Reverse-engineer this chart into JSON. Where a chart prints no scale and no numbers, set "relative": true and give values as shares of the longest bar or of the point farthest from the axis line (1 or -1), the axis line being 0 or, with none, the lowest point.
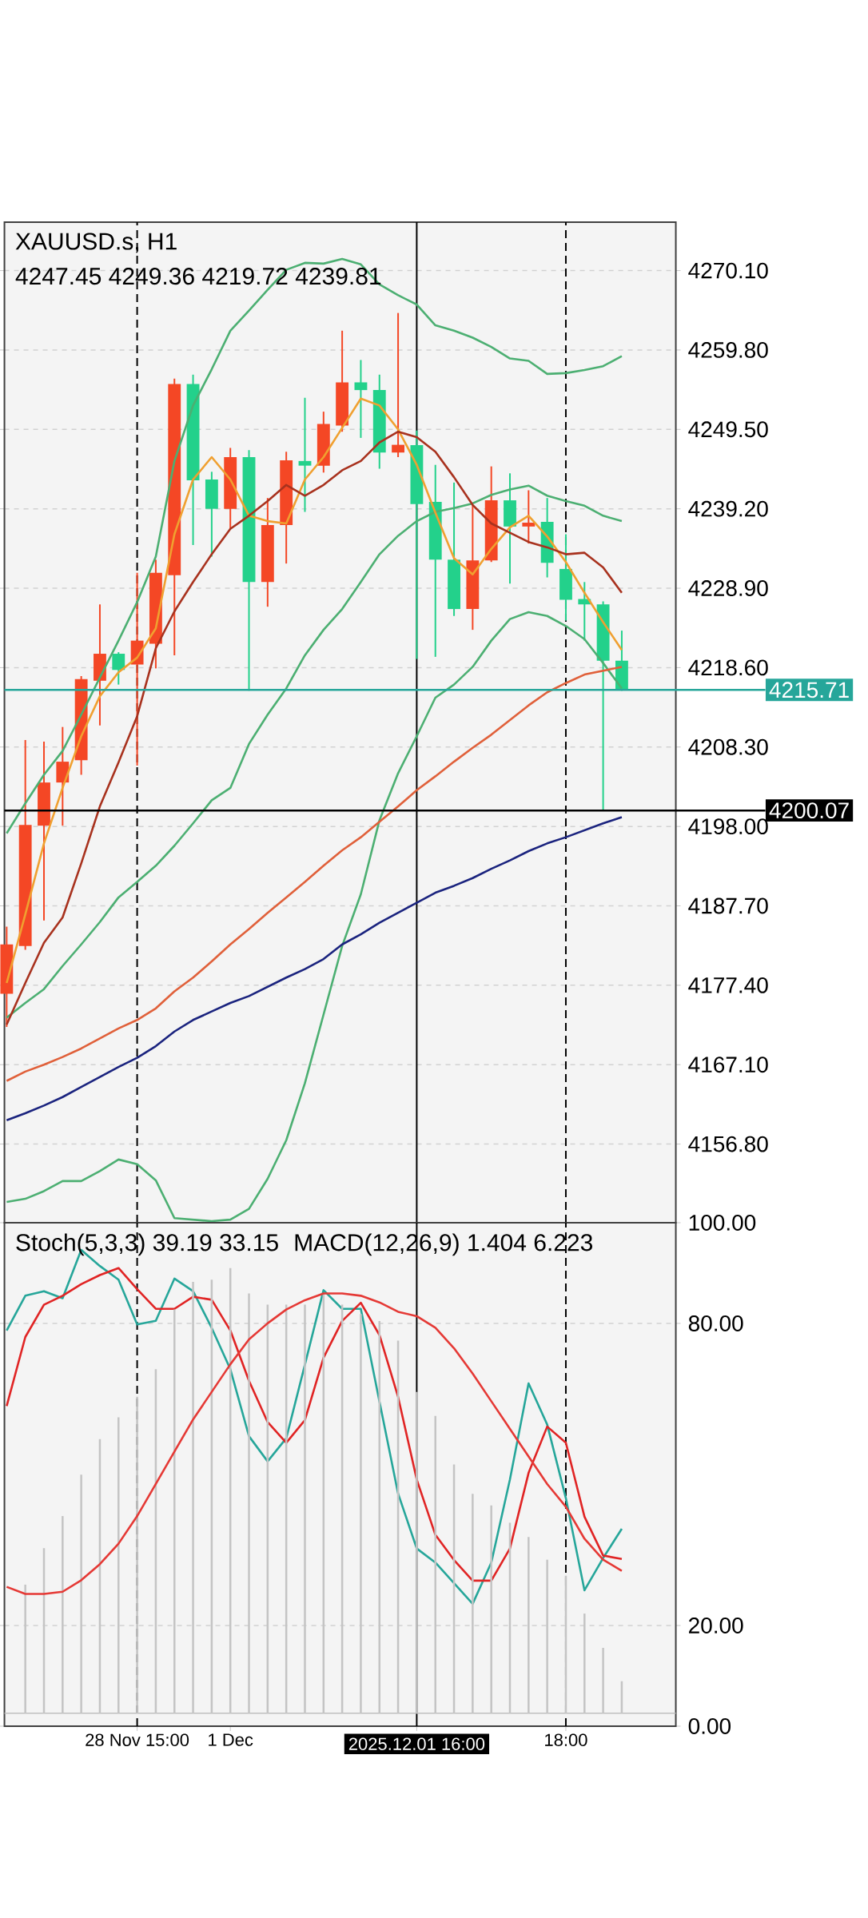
{
  "chart_data": [
    {
      "type": "candlestick",
      "title": "XAUUSD.s, H1",
      "subtitle": "4247.45 4249.36 4219.72 4239.81",
      "categories": [
        null,
        null,
        null,
        null,
        null,
        null,
        null,
        "28 Nov 15:00",
        null,
        null,
        null,
        null,
        "1 Dec",
        null,
        null,
        null,
        null,
        null,
        null,
        null,
        null,
        null,
        "2025.12.01 16:00",
        null,
        null,
        null,
        null,
        null,
        null,
        null,
        "18:00",
        null,
        null,
        null
      ],
      "ohlc": [
        [
          4176.3,
          4185.0,
          4172.0,
          4182.7
        ],
        [
          4182.5,
          4209.2,
          4182.0,
          4198.2
        ],
        [
          4198.1,
          4209.0,
          4185.8,
          4203.7
        ],
        [
          4203.7,
          4210.9,
          4198.1,
          4206.4
        ],
        [
          4206.6,
          4217.5,
          4204.7,
          4217.1
        ],
        [
          4216.9,
          4226.8,
          4211.1,
          4220.4
        ],
        [
          4220.4,
          4220.6,
          4216.4,
          4218.3
        ],
        [
          4219.0,
          4230.9,
          4205.9,
          4222.1
        ],
        [
          4221.7,
          4232.6,
          4218.5,
          4230.9
        ],
        [
          4230.6,
          4256.1,
          4220.2,
          4255.4
        ],
        [
          4255.4,
          4256.6,
          4234.5,
          4242.9
        ],
        [
          4243.0,
          4244.0,
          4233.0,
          4239.2
        ],
        [
          4239.2,
          4247.1,
          4236.6,
          4245.9
        ],
        [
          4245.9,
          4246.8,
          4215.6,
          4229.7
        ],
        [
          4229.7,
          4240.6,
          4226.5,
          4237.1
        ],
        [
          4237.1,
          4246.6,
          4232.1,
          4245.5
        ],
        [
          4245.4,
          4253.6,
          4238.8,
          4244.8
        ],
        [
          4244.8,
          4251.8,
          4243.9,
          4250.2
        ],
        [
          4250.0,
          4262.3,
          4249.2,
          4255.6
        ],
        [
          4255.6,
          4258.5,
          4248.4,
          4254.6
        ],
        [
          4254.6,
          4256.6,
          4244.4,
          4246.5
        ],
        [
          4246.5,
          4264.6,
          4245.9,
          4247.5
        ],
        [
          4247.45,
          4249.36,
          4219.72,
          4239.81
        ],
        [
          4240.1,
          4244.9,
          4220.0,
          4232.6
        ],
        [
          4232.6,
          4242.6,
          4225.3,
          4226.2
        ],
        [
          4226.2,
          4239.7,
          4223.5,
          4232.5
        ],
        [
          4232.5,
          4244.7,
          4232.3,
          4240.3
        ],
        [
          4240.3,
          4243.8,
          4229.5,
          4236.9
        ],
        [
          4236.9,
          4241.6,
          4234.7,
          4237.4
        ],
        [
          4237.5,
          4240.6,
          4230.3,
          4232.2
        ],
        [
          4231.4,
          4235.9,
          4224.7,
          4227.4
        ],
        [
          4227.5,
          4229.7,
          4222.1,
          4226.8
        ],
        [
          4226.8,
          4227.2,
          4200.1,
          4219.5
        ],
        [
          4219.5,
          4223.4,
          4215.6,
          4215.71
        ]
      ],
      "colors": [
        "#f44725",
        "#f44725",
        "#f44725",
        "#f44725",
        "#f44725",
        "#f44725",
        "#23d18b",
        "#f44725",
        "#f44725",
        "#f44725",
        "#23d18b",
        "#23d18b",
        "#f44725",
        "#23d18b",
        "#f44725",
        "#f44725",
        "#23d18b",
        "#f44725",
        "#f44725",
        "#23d18b",
        "#23d18b",
        "#f44725",
        "#23d18b",
        "#23d18b",
        "#23d18b",
        "#f44725",
        "#f44725",
        "#23d18b",
        "#f44725",
        "#23d18b",
        "#23d18b",
        "#23d18b",
        "#23d18b",
        "#23d18b"
      ],
      "series": [
        {
          "type": "line",
          "color": "#4caf72",
          "values": [
            4197.1,
            4201.0,
            4204.7,
            4207.8,
            4212.5,
            4217.3,
            4222.1,
            4227.1,
            4233.0,
            4245.4,
            4252.6,
            4257.3,
            4262.3,
            4264.9,
            4267.6,
            4270.2,
            4271.1,
            4271.0,
            4271.6,
            4270.9,
            4268.3,
            4266.9,
            4265.7,
            4263.0,
            4262.3,
            4261.4,
            4260.2,
            4258.7,
            4258.4,
            4256.7,
            4256.8,
            4257.2,
            4257.7,
            4259.0
          ]
        },
        {
          "type": "line",
          "color": "#4caf72",
          "values": [
            4173.2,
            4175.1,
            4176.9,
            4179.9,
            4182.7,
            4185.6,
            4188.8,
            4190.8,
            4192.9,
            4195.5,
            4198.4,
            4201.4,
            4203.0,
            4208.7,
            4212.5,
            4215.9,
            4220.2,
            4223.5,
            4226.2,
            4229.7,
            4233.3,
            4235.7,
            4237.6,
            4238.8,
            4239.3,
            4239.9,
            4241.0,
            4241.7,
            4242.2,
            4240.9,
            4240.2,
            4239.6,
            4238.3,
            4237.6
          ]
        },
        {
          "type": "line",
          "color": "#4caf72",
          "values": [
            4149.3,
            4149.7,
            4150.7,
            4152.0,
            4152.0,
            4153.3,
            4154.8,
            4154.2,
            4152.1,
            4147.2,
            4147.0,
            4146.8,
            4147.0,
            4148.4,
            4152.3,
            4157.3,
            4164.7,
            4173.6,
            4182.5,
            4189.2,
            4198.8,
            4204.9,
            4209.7,
            4214.7,
            4216.4,
            4218.7,
            4222.1,
            4224.9,
            4225.8,
            4225.3,
            4224.0,
            4222.3,
            4219.2,
            4215.9
          ]
        },
        {
          "type": "line",
          "color": "#f0a030",
          "values": [
            4177.7,
            4186.6,
            4195.8,
            4203.0,
            4209.7,
            4214.9,
            4218.0,
            4219.9,
            4223.7,
            4235.9,
            4243.0,
            4245.9,
            4243.0,
            4238.3,
            4237.6,
            4237.3,
            4243.0,
            4245.9,
            4249.7,
            4253.5,
            4252.6,
            4249.5,
            4244.9,
            4238.7,
            4232.8,
            4230.7,
            4234.0,
            4236.8,
            4238.3,
            4235.6,
            4232.3,
            4228.3,
            4224.5,
            4220.9
          ]
        },
        {
          "type": "line",
          "color": "#a8321e",
          "values": [
            4172.3,
            4177.7,
            4182.9,
            4186.2,
            4193.2,
            4200.6,
            4206.3,
            4212.3,
            4221.1,
            4225.9,
            4229.7,
            4233.3,
            4236.6,
            4238.3,
            4240.2,
            4242.3,
            4240.9,
            4242.3,
            4244.2,
            4245.4,
            4247.8,
            4249.2,
            4248.5,
            4246.6,
            4243.3,
            4239.7,
            4237.3,
            4236.1,
            4234.9,
            4234.2,
            4233.3,
            4233.5,
            4231.6,
            4228.3
          ]
        },
        {
          "type": "line",
          "color": "#e0603a",
          "values": [
            4165.0,
            4166.2,
            4167.1,
            4168.1,
            4169.2,
            4170.5,
            4171.8,
            4172.9,
            4174.4,
            4176.6,
            4178.4,
            4180.5,
            4182.7,
            4184.7,
            4186.8,
            4188.8,
            4190.8,
            4192.9,
            4194.9,
            4196.6,
            4198.6,
            4200.6,
            4202.7,
            4204.5,
            4206.4,
            4208.2,
            4209.9,
            4211.8,
            4213.7,
            4215.4,
            4216.6,
            4217.7,
            4218.2,
            4218.7
          ]
        },
        {
          "type": "line",
          "color": "#1a237e",
          "values": [
            4159.9,
            4160.8,
            4161.8,
            4162.9,
            4164.2,
            4165.5,
            4166.8,
            4168.0,
            4169.5,
            4171.4,
            4172.9,
            4174.0,
            4175.1,
            4176.0,
            4177.2,
            4178.4,
            4179.5,
            4180.8,
            4182.7,
            4184.0,
            4185.5,
            4186.8,
            4188.1,
            4189.4,
            4190.3,
            4191.3,
            4192.5,
            4193.6,
            4194.8,
            4195.8,
            4196.6,
            4197.5,
            4198.4,
            4199.2
          ]
        }
      ],
      "ylim": [
        4146.6,
        4276.38
      ],
      "yticks": [
        {
          "value": 4156.8,
          "label": "4156.80"
        },
        {
          "value": 4167.1,
          "label": "4167.10"
        },
        {
          "value": 4177.4,
          "label": "4177.40"
        },
        {
          "value": 4187.7,
          "label": "4187.70"
        },
        {
          "value": 4198.0,
          "label": "4198.00"
        },
        {
          "value": 4208.3,
          "label": "4208.30"
        },
        {
          "value": 4218.6,
          "label": "4218.60"
        },
        {
          "value": 4228.9,
          "label": "4228.90"
        },
        {
          "value": 4239.2,
          "label": "4239.20"
        },
        {
          "value": 4249.5,
          "label": "4249.50"
        },
        {
          "value": 4259.8,
          "label": "4259.80"
        },
        {
          "value": 4270.1,
          "label": "4270.10"
        }
      ],
      "grid": "y",
      "tick_labels": "y",
      "ref_lines": [
        {
          "axis": "y",
          "value": 4215.71,
          "label": "4215.71",
          "color": "#26a69a"
        },
        {
          "axis": "y",
          "value": 4200.07,
          "label": "4200.07",
          "color": "#000000"
        },
        {
          "axis": "x",
          "value": "2025.12.01 16:00",
          "color": "#000000"
        },
        {
          "axis": "x",
          "value": "28 Nov 15:00",
          "line_style": "dashed"
        },
        {
          "axis": "x",
          "value": "18:00",
          "line_style": "dashed"
        }
      ]
    },
    {
      "type": "line",
      "title": "Stoch(5,3,3) 39.19 33.15",
      "categories": [
        null,
        null,
        null,
        null,
        null,
        null,
        null,
        "28 Nov 15:00",
        null,
        null,
        null,
        null,
        "1 Dec",
        null,
        null,
        null,
        null,
        null,
        null,
        null,
        null,
        null,
        "2025.12.01 16:00",
        null,
        null,
        null,
        null,
        null,
        null,
        null,
        "18:00",
        null,
        null,
        null
      ],
      "series": [
        {
          "color": "#26a69a",
          "values": [
            78.6,
            85.5,
            86.4,
            85.0,
            94.6,
            91.4,
            88.7,
            79.8,
            80.5,
            88.9,
            86.4,
            79.1,
            70.9,
            57.6,
            52.6,
            57.2,
            71.8,
            86.6,
            82.9,
            82.9,
            64.5,
            46.2,
            35.3,
            32.5,
            28.4,
            24.3,
            32.5,
            49.0,
            68.1,
            59.9,
            45.3,
            27.0,
            33.4,
            39.2
          ]
        },
        {
          "color": "#e02424",
          "values": [
            63.6,
            77.3,
            83.7,
            85.5,
            87.8,
            89.6,
            91.0,
            86.8,
            82.9,
            82.9,
            85.3,
            84.7,
            78.6,
            68.6,
            60.4,
            56.3,
            60.8,
            73.2,
            80.5,
            84.1,
            77.7,
            65.4,
            49.0,
            38.0,
            33.0,
            28.9,
            28.9,
            35.3,
            50.3,
            59.5,
            56.3,
            41.6,
            33.9,
            33.2
          ]
        }
      ],
      "ylim": [
        0,
        100
      ],
      "yticks": [
        {
          "value": 0,
          "label": "0.00"
        },
        {
          "value": 20,
          "label": "20.00"
        },
        {
          "value": 80,
          "label": "80.00"
        },
        {
          "value": 100,
          "label": "100.00"
        }
      ],
      "grid": "y",
      "ref_lines": [
        {
          "axis": "x",
          "value": "2025.12.01 16:00",
          "color": "#000000"
        },
        {
          "axis": "x",
          "value": "28 Nov 15:00",
          "line_style": "dashed"
        },
        {
          "axis": "x",
          "value": "18:00",
          "line_style": "dashed"
        }
      ]
    },
    {
      "type": "bar",
      "title": "MACD(12,26,9) 1.404 6.223",
      "relative": true,
      "tick_labels": false,
      "categories": [
        null,
        null,
        null,
        null,
        null,
        null,
        null,
        "28 Nov 15:00",
        null,
        null,
        null,
        null,
        "1 Dec",
        null,
        null,
        null,
        null,
        null,
        null,
        null,
        null,
        null,
        "2025.12.01 16:00",
        null,
        null,
        null,
        null,
        null,
        null,
        null,
        "18:00",
        null,
        null,
        null
      ],
      "series": [
        {
          "color": "#c4c4c4",
          "values": [
            null,
            0.289,
            0.371,
            0.443,
            0.536,
            0.616,
            0.665,
            0.711,
            0.773,
            0.907,
            0.969,
            0.974,
            1,
            0.943,
            0.918,
            0.918,
            0.918,
            0.943,
            0.918,
            0.897,
            0.881,
            0.837,
            0.722,
            0.668,
            0.559,
            0.493,
            0.467,
            0.428,
            0.396,
            0.345,
            0.309,
            0.224,
            0.147,
            0.072
          ]
        },
        {
          "type": "line",
          "color": "#e53935",
          "values": [
            0.284,
            0.268,
            0.268,
            0.273,
            0.299,
            0.335,
            0.381,
            0.443,
            0.515,
            0.588,
            0.66,
            0.722,
            0.784,
            0.84,
            0.876,
            0.907,
            0.928,
            0.943,
            0.943,
            0.938,
            0.923,
            0.902,
            0.892,
            0.866,
            0.82,
            0.763,
            0.701,
            0.639,
            0.577,
            0.515,
            0.464,
            0.392,
            0.345,
            0.32
          ]
        }
      ]
    }
  ]
}
